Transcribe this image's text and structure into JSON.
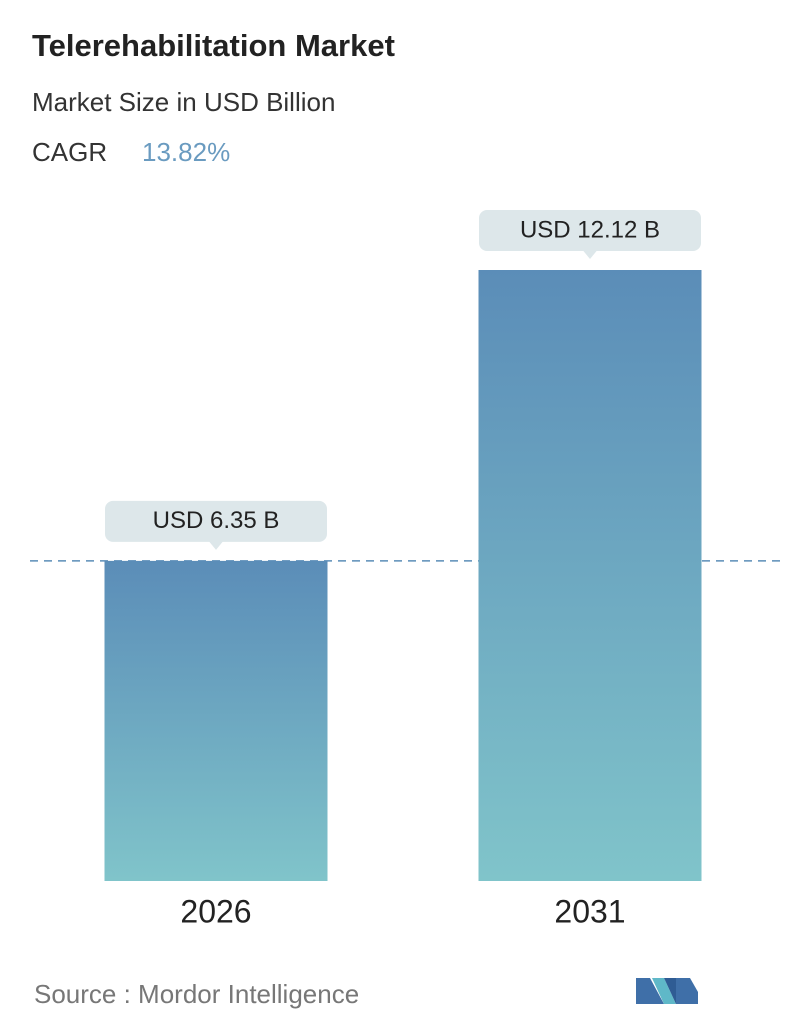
{
  "chart_data": {
    "type": "bar",
    "title": "Telerehabilitation Market",
    "subtitle": "Market Size in USD Billion",
    "cagr_label": "CAGR",
    "cagr_value": "13.82%",
    "categories": [
      "2026",
      "2031"
    ],
    "values": [
      6.35,
      12.12
    ],
    "value_labels": [
      "USD 6.35 B",
      "USD 12.12 B"
    ],
    "color_top": "#5b8db8",
    "color_bottom": "#80c4ca",
    "reference_line": true,
    "source": "Source :  Mordor Intelligence"
  }
}
